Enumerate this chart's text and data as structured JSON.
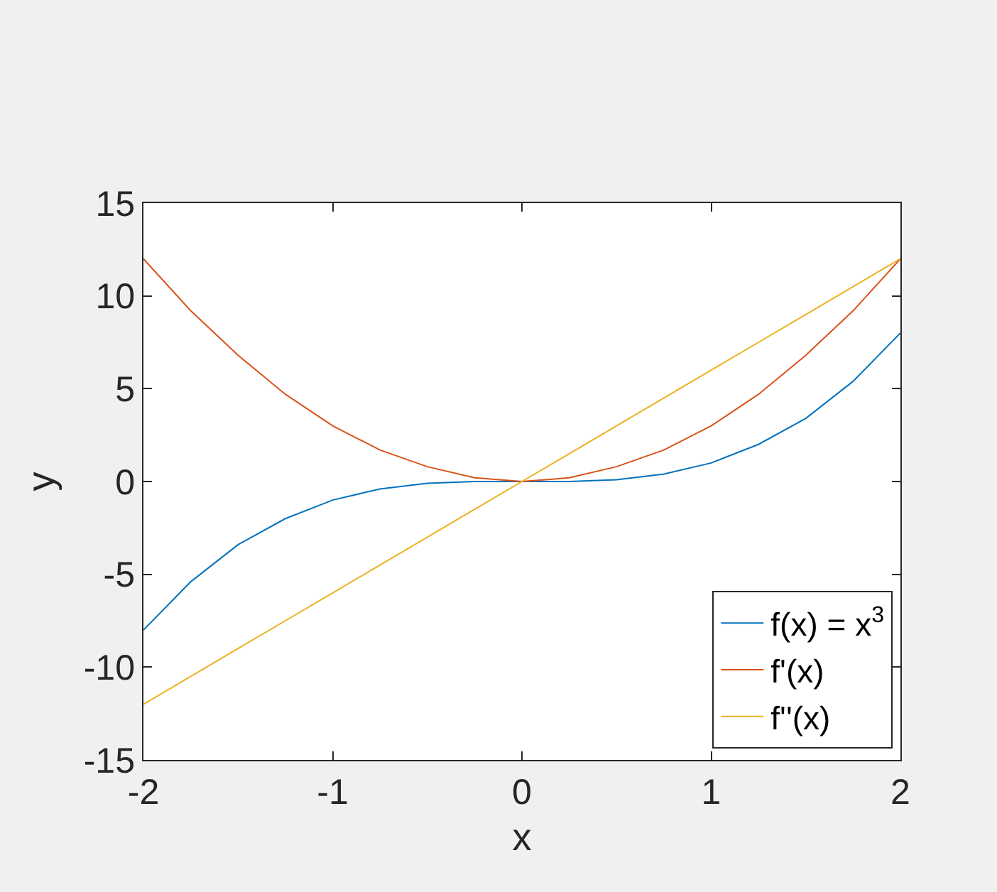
{
  "chart_data": {
    "type": "line",
    "xlabel": "x",
    "ylabel": "y",
    "x": [
      -2,
      -1.75,
      -1.5,
      -1.25,
      -1,
      -0.75,
      -0.5,
      -0.25,
      0,
      0.25,
      0.5,
      0.75,
      1,
      1.25,
      1.5,
      1.75,
      2
    ],
    "series": [
      {
        "name": "f(x) = x$^{3}$",
        "color": "#0072bd",
        "values": [
          -8,
          -5.4,
          -3.4,
          -2.0,
          -1,
          -0.4,
          -0.1,
          0,
          0,
          0,
          0.1,
          0.4,
          1,
          2.0,
          3.4,
          5.4,
          8
        ]
      },
      {
        "name": "f'(x)",
        "color": "#d95319",
        "values": [
          12,
          9.2,
          6.8,
          4.7,
          3,
          1.7,
          0.8,
          0.2,
          0,
          0.2,
          0.8,
          1.7,
          3,
          4.7,
          6.8,
          9.2,
          12
        ]
      },
      {
        "name": "f''(x)",
        "color": "#edb120",
        "values": [
          -12,
          -10.5,
          -9,
          -7.5,
          -6,
          -4.5,
          -3,
          -1.5,
          0,
          1.5,
          3,
          4.5,
          6,
          7.5,
          9,
          10.5,
          12
        ]
      }
    ],
    "xlim": [
      -2,
      2
    ],
    "xticks": [
      -2,
      -1,
      0,
      1,
      2
    ],
    "ylim": [
      -15,
      15
    ],
    "yticks": [
      -15,
      -10,
      -5,
      0,
      5,
      10,
      15
    ],
    "grid": false,
    "legend": "bottom right",
    "marker": "none",
    "line_style": "solid"
  }
}
